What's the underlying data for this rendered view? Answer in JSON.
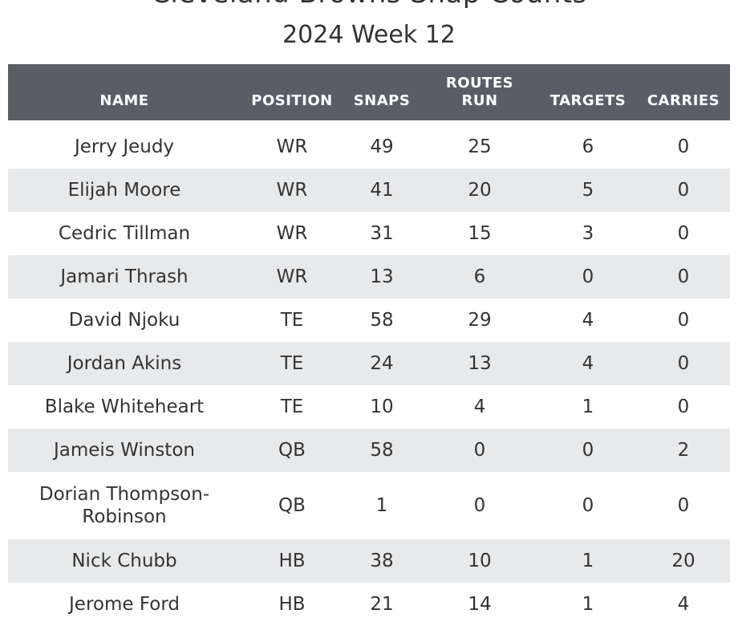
{
  "title": "Cleveland Browns Snap Counts",
  "subtitle": "2024 Week 12",
  "table": {
    "headers": {
      "name": "NAME",
      "position": "POSITION",
      "snaps": "SNAPS",
      "routes_line1": "ROUTES",
      "routes_line2": "RUN",
      "targets": "TARGETS",
      "carries": "CARRIES"
    },
    "rows": [
      {
        "name": "Jerry Jeudy",
        "position": "WR",
        "snaps": "49",
        "routes": "25",
        "targets": "6",
        "carries": "0"
      },
      {
        "name": "Elijah Moore",
        "position": "WR",
        "snaps": "41",
        "routes": "20",
        "targets": "5",
        "carries": "0"
      },
      {
        "name": "Cedric Tillman",
        "position": "WR",
        "snaps": "31",
        "routes": "15",
        "targets": "3",
        "carries": "0"
      },
      {
        "name": "Jamari Thrash",
        "position": "WR",
        "snaps": "13",
        "routes": "6",
        "targets": "0",
        "carries": "0"
      },
      {
        "name": "David Njoku",
        "position": "TE",
        "snaps": "58",
        "routes": "29",
        "targets": "4",
        "carries": "0"
      },
      {
        "name": "Jordan Akins",
        "position": "TE",
        "snaps": "24",
        "routes": "13",
        "targets": "4",
        "carries": "0"
      },
      {
        "name": "Blake Whiteheart",
        "position": "TE",
        "snaps": "10",
        "routes": "4",
        "targets": "1",
        "carries": "0"
      },
      {
        "name": "Jameis Winston",
        "position": "QB",
        "snaps": "58",
        "routes": "0",
        "targets": "0",
        "carries": "2"
      },
      {
        "name": "Dorian Thompson-Robinson",
        "position": "QB",
        "snaps": "1",
        "routes": "0",
        "targets": "0",
        "carries": "0"
      },
      {
        "name": "Nick Chubb",
        "position": "HB",
        "snaps": "38",
        "routes": "10",
        "targets": "1",
        "carries": "20"
      },
      {
        "name": "Jerome Ford",
        "position": "HB",
        "snaps": "21",
        "routes": "14",
        "targets": "1",
        "carries": "4"
      }
    ]
  },
  "colors": {
    "header_bg": "#595e66",
    "header_text": "#ffffff",
    "stripe_bg": "#e8e9eb",
    "text": "#333333"
  }
}
